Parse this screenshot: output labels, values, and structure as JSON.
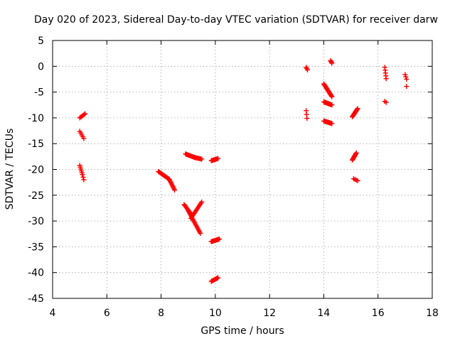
{
  "chart_data": {
    "type": "scatter",
    "title": "Day 020 of 2023, Sidereal Day-to-day VTEC variation (SDTVAR) for receiver darw",
    "xlabel": "GPS time / hours",
    "ylabel": "SDTVAR / TECUs",
    "xlim": [
      4,
      18
    ],
    "ylim": [
      -45,
      5
    ],
    "xticks": [
      4,
      6,
      8,
      10,
      12,
      14,
      16,
      18
    ],
    "yticks": [
      5,
      0,
      -5,
      -10,
      -15,
      -20,
      -25,
      -30,
      -35,
      -40,
      -45
    ],
    "grid": true,
    "marker": "+",
    "color": "#ff0000",
    "segments": [
      {
        "from": [
          5.0,
          -10.0
        ],
        "to": [
          5.2,
          -9.2
        ],
        "n": 6
      },
      {
        "from": [
          5.0,
          -12.6
        ],
        "to": [
          5.15,
          -14.0
        ],
        "n": 5
      },
      {
        "from": [
          5.0,
          -19.2
        ],
        "to": [
          5.1,
          -21.0
        ],
        "n": 6
      },
      {
        "from": [
          5.1,
          -21.0
        ],
        "to": [
          5.15,
          -22.0
        ],
        "n": 3
      },
      {
        "from": [
          7.9,
          -20.4
        ],
        "to": [
          8.3,
          -21.9
        ],
        "n": 14
      },
      {
        "from": [
          8.3,
          -21.9
        ],
        "to": [
          8.5,
          -24.0
        ],
        "n": 10
      },
      {
        "from": [
          8.9,
          -17.0
        ],
        "to": [
          9.25,
          -17.7
        ],
        "n": 12
      },
      {
        "from": [
          9.25,
          -17.7
        ],
        "to": [
          9.5,
          -18.0
        ],
        "n": 8
      },
      {
        "from": [
          8.85,
          -26.8
        ],
        "to": [
          9.1,
          -28.6
        ],
        "n": 10
      },
      {
        "from": [
          9.0,
          -28.0
        ],
        "to": [
          9.45,
          -32.4
        ],
        "n": 18
      },
      {
        "from": [
          9.1,
          -29.5
        ],
        "to": [
          9.5,
          -26.3
        ],
        "n": 14
      },
      {
        "from": [
          9.85,
          -18.3
        ],
        "to": [
          10.1,
          -17.9
        ],
        "n": 10
      },
      {
        "from": [
          9.85,
          -34.0
        ],
        "to": [
          10.15,
          -33.5
        ],
        "n": 12
      },
      {
        "from": [
          9.85,
          -41.7
        ],
        "to": [
          10.1,
          -41.0
        ],
        "n": 10
      },
      {
        "from": [
          13.35,
          -0.2
        ],
        "to": [
          13.4,
          -0.7
        ],
        "n": 3
      },
      {
        "from": [
          13.35,
          -8.6
        ],
        "to": [
          13.38,
          -10.1
        ],
        "n": 3
      },
      {
        "from": [
          14.0,
          -3.4
        ],
        "to": [
          14.3,
          -5.9
        ],
        "n": 16
      },
      {
        "from": [
          14.0,
          -6.9
        ],
        "to": [
          14.3,
          -7.5
        ],
        "n": 14
      },
      {
        "from": [
          14.0,
          -10.6
        ],
        "to": [
          14.3,
          -11.1
        ],
        "n": 14
      },
      {
        "from": [
          14.25,
          1.1
        ],
        "to": [
          14.3,
          0.6
        ],
        "n": 4
      },
      {
        "from": [
          15.05,
          -9.8
        ],
        "to": [
          15.25,
          -8.2
        ],
        "n": 12
      },
      {
        "from": [
          15.05,
          -18.2
        ],
        "to": [
          15.2,
          -16.8
        ],
        "n": 10
      },
      {
        "from": [
          15.1,
          -21.8
        ],
        "to": [
          15.25,
          -22.2
        ],
        "n": 4
      },
      {
        "from": [
          16.25,
          -0.2
        ],
        "to": [
          16.3,
          -2.4
        ],
        "n": 5
      },
      {
        "from": [
          16.25,
          -6.8
        ],
        "to": [
          16.3,
          -7.0
        ],
        "n": 2
      },
      {
        "from": [
          17.0,
          -1.6
        ],
        "to": [
          17.05,
          -2.5
        ],
        "n": 3
      },
      {
        "from": [
          17.05,
          -3.9
        ],
        "to": [
          17.05,
          -3.9
        ],
        "n": 1
      }
    ]
  }
}
